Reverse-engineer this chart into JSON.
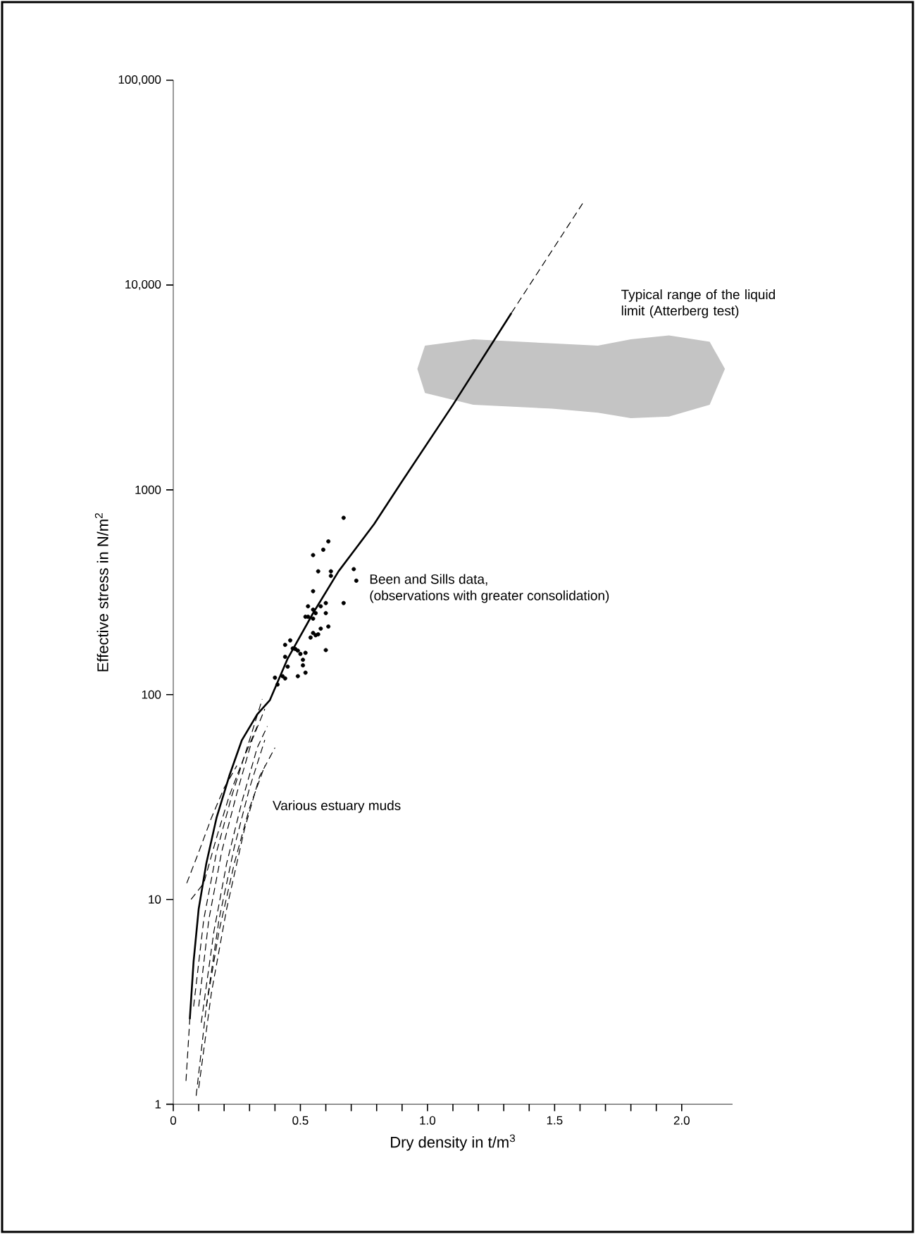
{
  "chart_data": {
    "type": "line",
    "xlabel": "Dry density in t/m$^{3}$",
    "ylabel": "Effective stress in N/m$^{2}$",
    "xlim": [
      0,
      2.2
    ],
    "ylim": [
      1,
      100000
    ],
    "log": "y",
    "grid": false,
    "xticks": [
      0,
      {
        "value": 0.1,
        "label": null
      },
      {
        "value": 0.2,
        "label": null
      },
      {
        "value": 0.3,
        "label": null
      },
      {
        "value": 0.4,
        "label": null
      },
      0.5,
      {
        "value": 0.6,
        "label": null
      },
      {
        "value": 0.7,
        "label": null
      },
      {
        "value": 0.8,
        "label": null
      },
      {
        "value": 0.9,
        "label": null
      },
      {
        "value": 1.0,
        "label": "1.0"
      },
      {
        "value": 1.1,
        "label": null
      },
      {
        "value": 1.2,
        "label": null
      },
      {
        "value": 1.3,
        "label": null
      },
      {
        "value": 1.4,
        "label": null
      },
      1.5,
      {
        "value": 1.6,
        "label": null
      },
      {
        "value": 1.7,
        "label": null
      },
      {
        "value": 1.8,
        "label": null
      },
      {
        "value": 1.9,
        "label": null
      },
      {
        "value": 2.0,
        "label": "2.0"
      }
    ],
    "yticks": [
      1,
      10,
      100,
      1000,
      {
        "value": 10000,
        "label": "10,000"
      },
      {
        "value": 100000,
        "label": "100,000"
      }
    ],
    "annotations": [
      "Typical range of the liquid limit (Atterberg test)",
      "Been and Sills data,",
      "(observations with greater consolidation)",
      "Various estuary muds"
    ],
    "series": [
      {
        "type": "area",
        "color": "#c4c4c4",
        "x": [
          0.96,
          0.99,
          1.18,
          1.49,
          1.67,
          1.8,
          1.95,
          2.11,
          2.17,
          2.11,
          1.95,
          1.8,
          1.67,
          1.49,
          1.18,
          0.99
        ],
        "values": [
          3900,
          5060,
          5430,
          5190,
          5060,
          5430,
          5670,
          5280,
          3900,
          2600,
          2280,
          2240,
          2380,
          2490,
          2600,
          2970
        ]
      },
      {
        "color": "#000000",
        "line_style": "dashed",
        "x": [
          0.053,
          0.1,
          0.15,
          0.2,
          0.25
        ],
        "values": [
          12,
          17,
          25,
          35,
          45
        ]
      },
      {
        "type": "line",
        "color": "#000000",
        "line_style": "dashed",
        "x": [
          0.07,
          0.12,
          0.17,
          0.22,
          0.28,
          0.33
        ],
        "values": [
          10,
          12,
          20,
          32,
          50,
          70
        ]
      },
      {
        "type": "line",
        "color": "#000000",
        "line_style": "dashed",
        "x": [
          0.08,
          0.12,
          0.17,
          0.23,
          0.3,
          0.35
        ],
        "values": [
          3,
          8,
          17,
          32,
          60,
          95
        ]
      },
      {
        "type": "line",
        "color": "#000000",
        "line_style": "dashed",
        "x": [
          0.1,
          0.14,
          0.19,
          0.25,
          0.31,
          0.36
        ],
        "values": [
          3,
          8,
          17,
          33,
          60,
          85
        ]
      },
      {
        "type": "line",
        "color": "#000000",
        "line_style": "dashed",
        "x": [
          0.11,
          0.16,
          0.21,
          0.27,
          0.33,
          0.37
        ],
        "values": [
          2.5,
          7,
          15,
          30,
          55,
          70
        ]
      },
      {
        "type": "line",
        "color": "#000000",
        "line_style": "dashed",
        "x": [
          0.09,
          0.13,
          0.18,
          0.24,
          0.3,
          0.36
        ],
        "values": [
          1.1,
          3,
          8,
          18,
          35,
          60
        ]
      },
      {
        "type": "line",
        "color": "#000000",
        "line_style": "dashed",
        "x": [
          0.1,
          0.15,
          0.21,
          0.28,
          0.34,
          0.4
        ],
        "values": [
          1.2,
          3.5,
          9,
          22,
          40,
          55
        ]
      },
      {
        "type": "line",
        "color": "#000000",
        "line_style": "dashed",
        "x": [
          0.13,
          0.18,
          0.24,
          0.3,
          0.36
        ],
        "values": [
          3,
          7,
          15,
          28,
          45
        ]
      },
      {
        "color": "#000000",
        "line_style": "solid",
        "x": [
          0.065,
          0.08,
          0.1,
          0.13,
          0.17,
          0.22,
          0.27,
          0.33,
          0.38,
          0.45,
          0.55,
          0.65,
          0.79,
          0.9,
          1.1,
          1.33
        ],
        "values": [
          2.6,
          5,
          9,
          15,
          25,
          40,
          60,
          80,
          94,
          150,
          250,
          400,
          680,
          1100,
          2600,
          7300
        ]
      },
      {
        "type": "line",
        "color": "#000000",
        "line_style": "dashed",
        "x": [
          0.05,
          0.065
        ],
        "values": [
          1.3,
          2.6
        ]
      },
      {
        "type": "line",
        "color": "#000000",
        "line_style": "dashed",
        "x": [
          1.33,
          1.61
        ],
        "values": [
          7300,
          25000
        ]
      },
      {
        "type": "scatter",
        "color": "#000000",
        "marker": "circle",
        "x": [
          0.67,
          0.61,
          0.59,
          0.55,
          0.71,
          0.57,
          0.62,
          0.62,
          0.72,
          0.55,
          0.67,
          0.6,
          0.53,
          0.58,
          0.55,
          0.6,
          0.56,
          0.52,
          0.53,
          0.55,
          0.61,
          0.58,
          0.55,
          0.57,
          0.56,
          0.54,
          0.6,
          0.46,
          0.44,
          0.47,
          0.48,
          0.49,
          0.52,
          0.5,
          0.44,
          0.51,
          0.51,
          0.45,
          0.52,
          0.49,
          0.43,
          0.4,
          0.44,
          0.41
        ],
        "values": [
          730,
          560,
          510,
          480,
          410,
          400,
          400,
          380,
          360,
          320,
          280,
          280,
          270,
          270,
          260,
          250,
          250,
          240,
          240,
          235,
          215,
          210,
          200,
          197,
          195,
          190,
          165,
          184,
          175,
          168,
          167,
          164,
          160,
          158,
          153,
          148,
          139,
          137,
          128,
          123,
          123,
          121,
          120,
          112
        ]
      }
    ]
  }
}
